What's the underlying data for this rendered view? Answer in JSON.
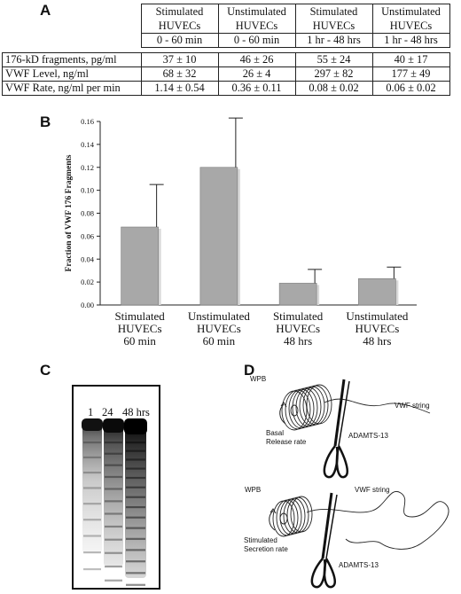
{
  "panels": {
    "a": "A",
    "b": "B",
    "c": "C",
    "d": "D"
  },
  "table": {
    "columns": [
      {
        "line1": "Stimulated",
        "line2": "HUVECs",
        "time": "0 - 60 min"
      },
      {
        "line1": "Unstimulated",
        "line2": "HUVECs",
        "time": "0 - 60 min"
      },
      {
        "line1": "Stimulated",
        "line2": "HUVECs",
        "time": "1 hr - 48 hrs"
      },
      {
        "line1": "Unstimulated",
        "line2": "HUVECs",
        "time": "1 hr - 48 hrs"
      }
    ],
    "rows": [
      {
        "label": "176-kD fragments, pg/ml",
        "values": [
          "37 ± 10",
          "46 ± 26",
          "55 ± 24",
          "40 ± 17"
        ]
      },
      {
        "label": "VWF Level, ng/ml",
        "values": [
          "68 ± 32",
          "26 ± 4",
          "297 ± 82",
          "177 ± 49"
        ]
      },
      {
        "label": "VWF Rate, ng/ml per min",
        "values": [
          "1.14 ± 0.54",
          "0.36 ± 0.11",
          "0.08 ± 0.02",
          "0.06 ± 0.02"
        ]
      }
    ]
  },
  "chart_data": {
    "type": "bar",
    "ylabel": "Fraction of VWF 176 Fragments",
    "ylim": [
      0,
      0.16
    ],
    "yticks": [
      "0.00",
      "0.02",
      "0.04",
      "0.06",
      "0.08",
      "0.10",
      "0.12",
      "0.14",
      "0.16"
    ],
    "categories": [
      {
        "l1": "Stimulated",
        "l2": "HUVECs",
        "l3": "60 min"
      },
      {
        "l1": "Unstimulated",
        "l2": "HUVECs",
        "l3": "60 min"
      },
      {
        "l1": "Stimulated",
        "l2": "HUVECs",
        "l3": "48 hrs"
      },
      {
        "l1": "Unstimulated",
        "l2": "HUVECs",
        "l3": "48 hrs"
      }
    ],
    "values": [
      0.068,
      0.12,
      0.019,
      0.023
    ],
    "errors": [
      0.037,
      0.043,
      0.012,
      0.01
    ],
    "colors": {
      "bar": "#a8a8a8",
      "bar_edge": "#7a7a7a"
    }
  },
  "gel": {
    "lanes": [
      "1",
      "24",
      "48 hrs"
    ]
  },
  "diagram": {
    "top": {
      "wpb": "WPB",
      "string": "VWF string",
      "rate1": "Basal",
      "rate2": "Release rate",
      "enzyme": "ADAMTS-13"
    },
    "bottom": {
      "wpb": "WPB",
      "string": "VWF string",
      "rate1": "Stimulated",
      "rate2": "Secretion rate",
      "enzyme": "ADAMTS-13"
    }
  }
}
